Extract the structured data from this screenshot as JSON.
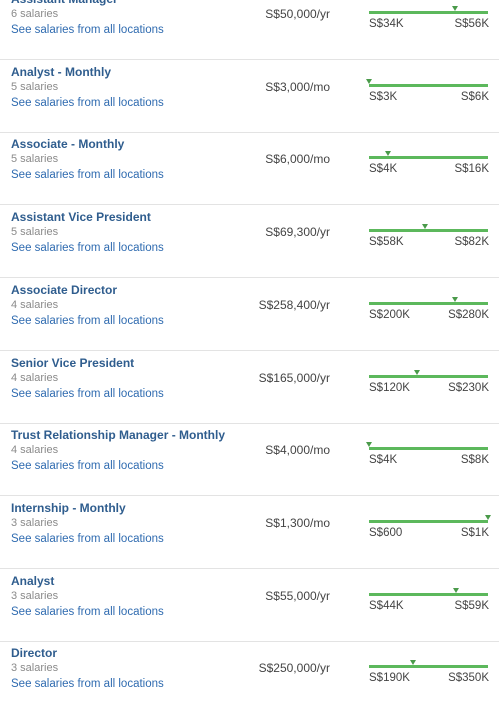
{
  "rows": [
    {
      "title": "Assistant Manager",
      "count": "6 salaries",
      "link": "See salaries from all locations",
      "salary": {
        "value": 50000,
        "label": "S$50,000/yr"
      },
      "low": {
        "value": 34000,
        "label": "S$34K"
      },
      "high": {
        "value": 56000,
        "label": "S$56K"
      }
    },
    {
      "title": "Analyst - Monthly",
      "count": "5 salaries",
      "link": "See salaries from all locations",
      "salary": {
        "value": 3000,
        "label": "S$3,000/mo"
      },
      "low": {
        "value": 3000,
        "label": "S$3K"
      },
      "high": {
        "value": 6000,
        "label": "S$6K"
      }
    },
    {
      "title": "Associate - Monthly",
      "count": "5 salaries",
      "link": "See salaries from all locations",
      "salary": {
        "value": 6000,
        "label": "S$6,000/mo"
      },
      "low": {
        "value": 4000,
        "label": "S$4K"
      },
      "high": {
        "value": 16000,
        "label": "S$16K"
      }
    },
    {
      "title": "Assistant Vice President",
      "count": "5 salaries",
      "link": "See salaries from all locations",
      "salary": {
        "value": 69300,
        "label": "S$69,300/yr"
      },
      "low": {
        "value": 58000,
        "label": "S$58K"
      },
      "high": {
        "value": 82000,
        "label": "S$82K"
      }
    },
    {
      "title": "Associate Director",
      "count": "4 salaries",
      "link": "See salaries from all locations",
      "salary": {
        "value": 258400,
        "label": "S$258,400/yr"
      },
      "low": {
        "value": 200000,
        "label": "S$200K"
      },
      "high": {
        "value": 280000,
        "label": "S$280K"
      }
    },
    {
      "title": "Senior Vice President",
      "count": "4 salaries",
      "link": "See salaries from all locations",
      "salary": {
        "value": 165000,
        "label": "S$165,000/yr"
      },
      "low": {
        "value": 120000,
        "label": "S$120K"
      },
      "high": {
        "value": 230000,
        "label": "S$230K"
      }
    },
    {
      "title": "Trust Relationship Manager - Monthly",
      "count": "4 salaries",
      "link": "See salaries from all locations",
      "salary": {
        "value": 4000,
        "label": "S$4,000/mo"
      },
      "low": {
        "value": 4000,
        "label": "S$4K"
      },
      "high": {
        "value": 8000,
        "label": "S$8K"
      }
    },
    {
      "title": "Internship - Monthly",
      "count": "3 salaries",
      "link": "See salaries from all locations",
      "salary": {
        "value": 1300,
        "label": "S$1,300/mo"
      },
      "low": {
        "value": 600,
        "label": "S$600"
      },
      "high": {
        "value": 1300,
        "label": "S$1K"
      }
    },
    {
      "title": "Analyst",
      "count": "3 salaries",
      "link": "See salaries from all locations",
      "salary": {
        "value": 55000,
        "label": "S$55,000/yr"
      },
      "low": {
        "value": 44000,
        "label": "S$44K"
      },
      "high": {
        "value": 59000,
        "label": "S$59K"
      }
    },
    {
      "title": "Director",
      "count": "3 salaries",
      "link": "See salaries from all locations",
      "salary": {
        "value": 250000,
        "label": "S$250,000/yr"
      },
      "low": {
        "value": 190000,
        "label": "S$190K"
      },
      "high": {
        "value": 350000,
        "label": "S$350K"
      }
    }
  ]
}
